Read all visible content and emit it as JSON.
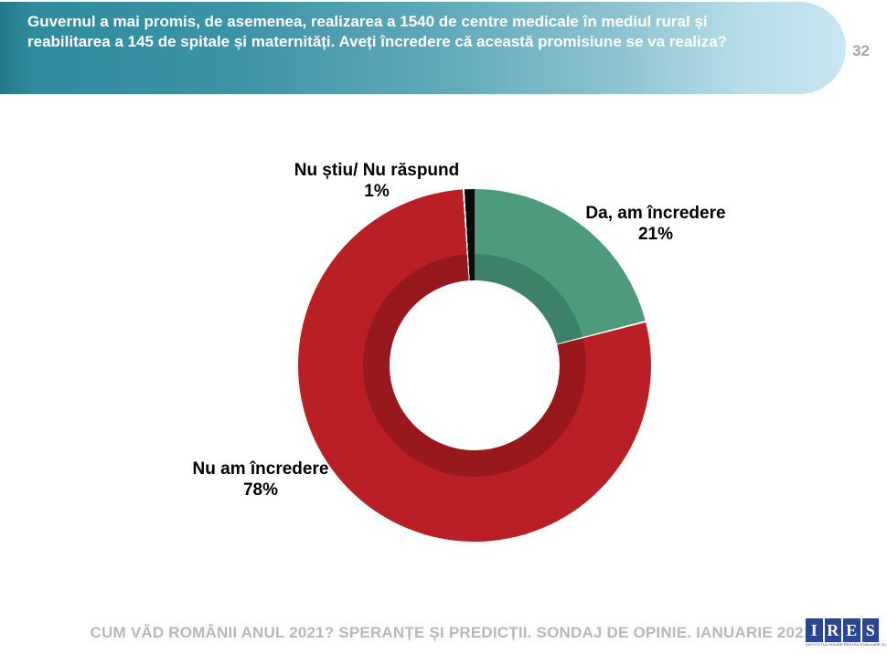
{
  "header": {
    "question": "Guvernul a mai promis, de asemenea, realizarea a 1540 de centre medicale în mediul rural și reabilitarea a 145 de spitale și maternități. Aveți încredere că această promisiune se va realiza?",
    "page_number": "32"
  },
  "chart_data": {
    "type": "pie",
    "subtype": "donut",
    "title": "",
    "direction": "clockwise",
    "start_angle_deg": 0,
    "legend_position": "none",
    "separator_color": "#ffffff",
    "hole_color": "#ffffff",
    "segments": [
      {
        "label": "Da, am încredere",
        "value": 21,
        "pct": "21%",
        "color": "#4D9B7C",
        "inner_color": "#3D8268"
      },
      {
        "label": "Nu am încredere",
        "value": 78,
        "pct": "78%",
        "color": "#B82025",
        "inner_color": "#97191D"
      },
      {
        "label": "Nu știu/ Nu răspund",
        "value": 1,
        "pct": "1%",
        "color": "#0A0A0A",
        "inner_color": "#0A0A0A"
      }
    ]
  },
  "footer": {
    "caption": "CUM VĂD ROMÂNII ANUL 2021? SPERANȚE ȘI PREDICȚII. SONDAJ DE OPINIE. IANUARIE 2021",
    "logo": {
      "letters": [
        "I",
        "R",
        "E",
        "S"
      ],
      "tagline": "INSTITUTUL ROMÂN PENTRU EVALUARE ȘI STRATEGIE",
      "color": "#2A4596"
    }
  }
}
